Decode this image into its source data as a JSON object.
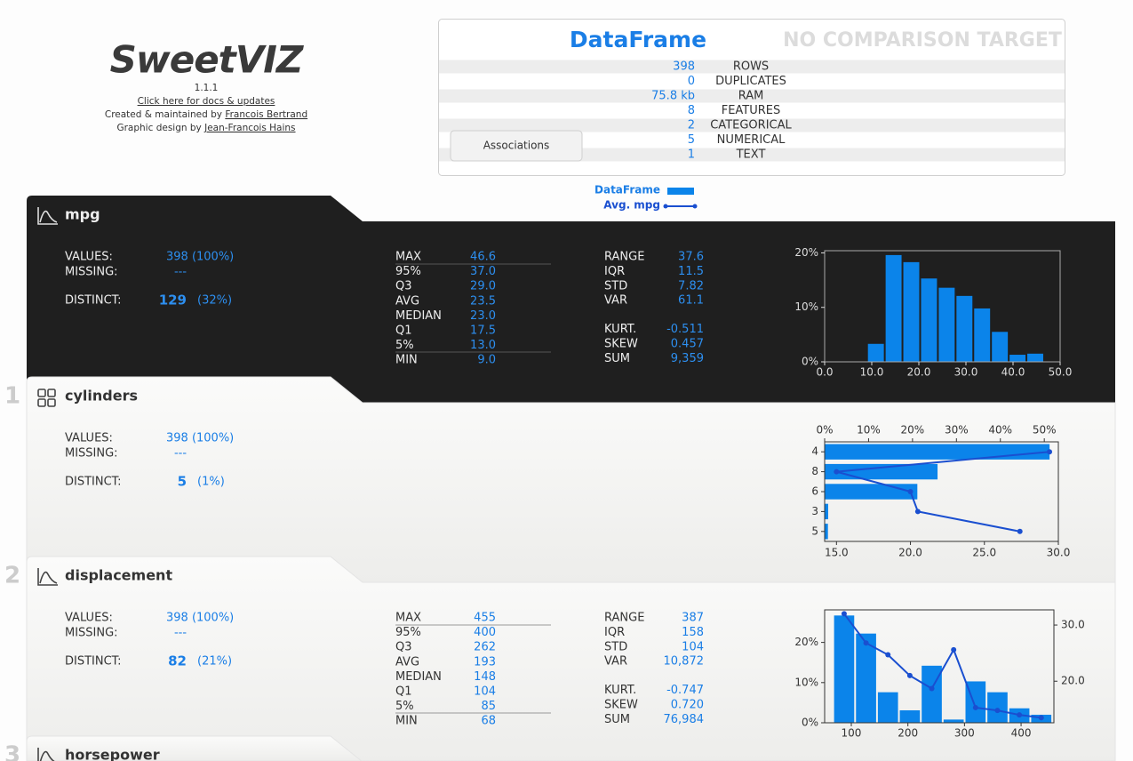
{
  "header": {
    "logo": "SweetVIZ",
    "version": "1.1.1",
    "docs_link": "Click here for docs & updates",
    "created_by": "Created & maintained by",
    "author": "Francois Bertrand",
    "design_by": "Graphic design by",
    "designer": "Jean-Francois Hains"
  },
  "summary": {
    "title": "DataFrame",
    "comparison": "NO COMPARISON TARGET",
    "associations_button": "Associations",
    "rows": [
      {
        "value": "398",
        "label": "ROWS"
      },
      {
        "value": "0",
        "label": "DUPLICATES"
      },
      {
        "value": "75.8 kb",
        "label": "RAM"
      },
      {
        "value": "8",
        "label": "FEATURES"
      },
      {
        "value": "2",
        "label": "CATEGORICAL"
      },
      {
        "value": "5",
        "label": "NUMERICAL"
      },
      {
        "value": "1",
        "label": "TEXT"
      }
    ]
  },
  "legend": {
    "dataframe": "DataFrame",
    "average": "Avg. mpg",
    "bar_color": "#0b84ea",
    "line_color": "#1a4fd0"
  },
  "stat_labels": {
    "values": "VALUES:",
    "missing": "MISSING:",
    "distinct": "DISTINCT:"
  },
  "features": [
    {
      "name": "mpg",
      "kind": "numeric",
      "theme": "dark",
      "values": "398 (100%)",
      "missing": "---",
      "distinct": "129",
      "distinct_pct": "(32%)",
      "quantiles": [
        {
          "label": "MAX",
          "value": "46.6"
        },
        {
          "label": "95%",
          "value": "37.0"
        },
        {
          "label": "Q3",
          "value": "29.0"
        },
        {
          "label": "AVG",
          "value": "23.5"
        },
        {
          "label": "MEDIAN",
          "value": "23.0"
        },
        {
          "label": "Q1",
          "value": "17.5"
        },
        {
          "label": "5%",
          "value": "13.0"
        },
        {
          "label": "MIN",
          "value": "9.0"
        }
      ],
      "stats": [
        {
          "label": "RANGE",
          "value": "37.6"
        },
        {
          "label": "IQR",
          "value": "11.5"
        },
        {
          "label": "STD",
          "value": "7.82"
        },
        {
          "label": "VAR",
          "value": "61.1"
        },
        {
          "label": "KURT.",
          "value": "-0.511"
        },
        {
          "label": "SKEW",
          "value": "0.457"
        },
        {
          "label": "SUM",
          "value": "9,359"
        }
      ],
      "chart": {
        "type": "histogram",
        "color": "#0b84ea",
        "bins": [
          9.0,
          12.76,
          16.52,
          20.28,
          24.04,
          27.8,
          31.56,
          35.32,
          39.08,
          42.84,
          46.6
        ],
        "values": [
          3.3,
          19.6,
          18.3,
          15.3,
          13.6,
          12.1,
          9.8,
          5.5,
          1.3,
          1.5
        ],
        "xlim": [
          0,
          50
        ],
        "xticks": [
          {
            "value": 0,
            "label": "0.0"
          },
          {
            "value": 10,
            "label": "10.0"
          },
          {
            "value": 20,
            "label": "20.0"
          },
          {
            "value": 30,
            "label": "30.0"
          },
          {
            "value": 40,
            "label": "40.0"
          },
          {
            "value": 50,
            "label": "50.0"
          }
        ],
        "ylim": [
          0,
          20.4
        ],
        "yticks": [
          {
            "value": 0,
            "label": "0%"
          },
          {
            "value": 10,
            "label": "10%"
          },
          {
            "value": 20,
            "label": "20%"
          }
        ]
      }
    },
    {
      "index": "1",
      "name": "cylinders",
      "kind": "categorical",
      "theme": "light",
      "values": "398 (100%)",
      "missing": "---",
      "distinct": "5",
      "distinct_pct": "(1%)",
      "chart": {
        "type": "hbar",
        "color": "#0b84ea",
        "categories": [
          "4",
          "8",
          "6",
          "3",
          "5"
        ],
        "values": [
          51.2,
          25.7,
          21.1,
          0.8,
          0.75
        ],
        "xlim": [
          0,
          53.2
        ],
        "xticks": [
          {
            "value": 0,
            "label": "0%"
          },
          {
            "value": 10,
            "label": "10%"
          },
          {
            "value": 20,
            "label": "20%"
          },
          {
            "value": 30,
            "label": "30%"
          },
          {
            "value": 40,
            "label": "40%"
          },
          {
            "value": 50,
            "label": "50%"
          }
        ],
        "line": {
          "color": "#1a4fd0",
          "values": [
            29.4,
            15.0,
            20.0,
            20.5,
            27.4
          ]
        },
        "x2lim": [
          14.2,
          30
        ],
        "x2ticks": [
          {
            "value": 15,
            "label": "15.0"
          },
          {
            "value": 20,
            "label": "20.0"
          },
          {
            "value": 25,
            "label": "25.0"
          },
          {
            "value": 30,
            "label": "30.0"
          }
        ]
      }
    },
    {
      "index": "2",
      "name": "displacement",
      "kind": "numeric",
      "theme": "light",
      "values": "398 (100%)",
      "missing": "---",
      "distinct": "82",
      "distinct_pct": "(21%)",
      "quantiles": [
        {
          "label": "MAX",
          "value": "455"
        },
        {
          "label": "95%",
          "value": "400"
        },
        {
          "label": "Q3",
          "value": "262"
        },
        {
          "label": "AVG",
          "value": "193"
        },
        {
          "label": "MEDIAN",
          "value": "148"
        },
        {
          "label": "Q1",
          "value": "104"
        },
        {
          "label": "5%",
          "value": "85"
        },
        {
          "label": "MIN",
          "value": "68"
        }
      ],
      "stats": [
        {
          "label": "RANGE",
          "value": "387"
        },
        {
          "label": "IQR",
          "value": "158"
        },
        {
          "label": "STD",
          "value": "104"
        },
        {
          "label": "VAR",
          "value": "10,872"
        },
        {
          "label": "KURT.",
          "value": "-0.747"
        },
        {
          "label": "SKEW",
          "value": "0.720"
        },
        {
          "label": "SUM",
          "value": "76,984"
        }
      ],
      "chart": {
        "type": "histogram",
        "color": "#0b84ea",
        "bins": [
          68,
          106.7,
          145.4,
          184.1,
          222.8,
          261.5,
          300.2,
          338.9,
          377.6,
          416.3,
          455
        ],
        "values": [
          26.7,
          22.2,
          7.6,
          3.1,
          14.2,
          0.8,
          10.3,
          7.6,
          3.6,
          2.0
        ],
        "xlim": [
          52.9,
          458
        ],
        "xticks": [
          100,
          200,
          300,
          400
        ],
        "ylim": [
          0,
          28.1
        ],
        "yticks": [
          {
            "value": 0,
            "label": "0%"
          },
          {
            "value": 10,
            "label": "10%"
          },
          {
            "value": 20,
            "label": "20%"
          }
        ],
        "line": {
          "color": "#1a4fd0",
          "axis": "y2",
          "values": [
            32.0,
            26.8,
            24.7,
            21.0,
            18.7,
            25.6,
            15.3,
            14.8,
            14.0,
            13.5
          ]
        },
        "y2lim": [
          12.6,
          32.7
        ],
        "y2ticks": [
          {
            "value": 20,
            "label": "20.0"
          },
          {
            "value": 30,
            "label": "30.0"
          }
        ]
      }
    },
    {
      "index": "3",
      "name": "horsepower",
      "kind": "numeric",
      "theme": "light"
    }
  ]
}
